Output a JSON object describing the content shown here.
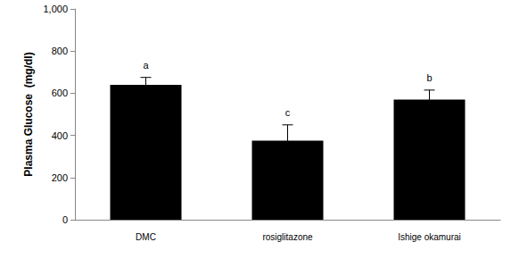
{
  "chart_data": {
    "type": "bar",
    "categories": [
      "DMC",
      "rosiglitazone",
      "Ishige okamurai"
    ],
    "values": [
      640,
      375,
      570
    ],
    "errors": [
      35,
      75,
      45
    ],
    "annotations": [
      "a",
      "c",
      "b"
    ],
    "color": "#000000",
    "ylabel": "Plasma Glucose  (mg/dl)",
    "ylim": [
      0,
      1000
    ],
    "yticks": [
      0,
      200,
      400,
      600,
      800,
      1000
    ],
    "grid": false
  }
}
